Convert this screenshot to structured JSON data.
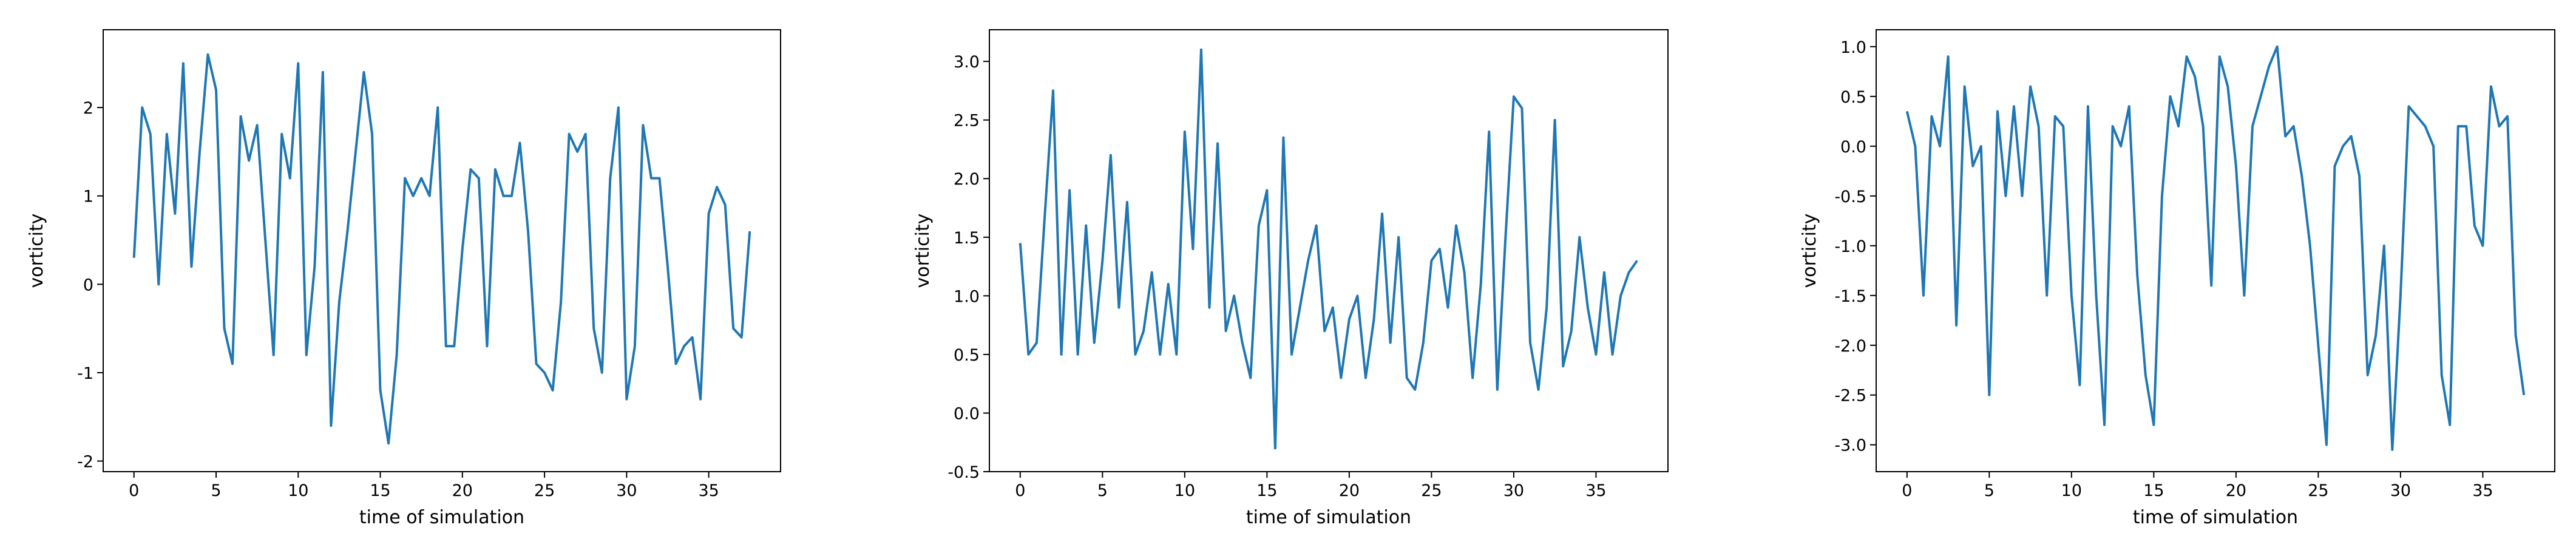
{
  "chart_data": [
    {
      "type": "line",
      "xlabel": "time of simulation",
      "ylabel": "vorticity",
      "x": [
        0,
        0.5,
        1,
        1.5,
        2,
        2.5,
        3,
        3.5,
        4,
        4.5,
        5,
        5.5,
        6,
        6.5,
        7,
        7.5,
        8,
        8.5,
        9,
        9.5,
        10,
        10.5,
        11,
        11.5,
        12,
        12.5,
        13,
        13.5,
        14,
        14.5,
        15,
        15.5,
        16,
        16.5,
        17,
        17.5,
        18,
        18.5,
        19,
        19.5,
        20,
        20.5,
        21,
        21.5,
        22,
        22.5,
        23,
        23.5,
        24,
        24.5,
        25,
        25.5,
        26,
        26.5,
        27,
        27.5,
        28,
        28.5,
        29,
        29.5,
        30,
        30.5,
        31,
        31.5,
        32,
        32.5,
        33,
        33.5,
        34,
        34.5,
        35,
        35.5,
        36,
        36.5,
        37,
        37.5
      ],
      "series": [
        {
          "color": "#1f77b4",
          "values": [
            0.3,
            2.0,
            1.7,
            0.0,
            1.7,
            0.8,
            2.5,
            0.2,
            1.5,
            2.6,
            2.2,
            -0.5,
            -0.9,
            1.9,
            1.4,
            1.8,
            0.5,
            -0.8,
            1.7,
            1.2,
            2.5,
            -0.8,
            0.2,
            2.4,
            -1.6,
            -0.2,
            0.6,
            1.5,
            2.4,
            1.7,
            -1.2,
            -1.8,
            -0.8,
            1.2,
            1.0,
            1.2,
            1.0,
            2.0,
            -0.7,
            -0.7,
            0.4,
            1.3,
            1.2,
            -0.7,
            1.3,
            1.0,
            1.0,
            1.6,
            0.6,
            -0.9,
            -1.0,
            -1.2,
            -0.2,
            1.7,
            1.5,
            1.7,
            -0.5,
            -1.0,
            1.2,
            2.0,
            -1.3,
            -0.7,
            1.8,
            1.2,
            1.2,
            0.2,
            -0.9,
            -0.7,
            -0.6,
            -1.3,
            0.8,
            1.1,
            0.9,
            -0.5,
            -0.6,
            0.6
          ]
        }
      ],
      "xlim": [
        -1.875,
        39.375
      ],
      "ylim": [
        -2.12,
        2.88
      ],
      "xticks": [
        0,
        5,
        10,
        15,
        20,
        25,
        30,
        35
      ],
      "yticks": [
        -2,
        -1,
        0,
        1,
        2
      ]
    },
    {
      "type": "line",
      "xlabel": "time of simulation",
      "ylabel": "vorticity",
      "x": [
        0,
        0.5,
        1,
        1.5,
        2,
        2.5,
        3,
        3.5,
        4,
        4.5,
        5,
        5.5,
        6,
        6.5,
        7,
        7.5,
        8,
        8.5,
        9,
        9.5,
        10,
        10.5,
        11,
        11.5,
        12,
        12.5,
        13,
        13.5,
        14,
        14.5,
        15,
        15.5,
        16,
        16.5,
        17,
        17.5,
        18,
        18.5,
        19,
        19.5,
        20,
        20.5,
        21,
        21.5,
        22,
        22.5,
        23,
        23.5,
        24,
        24.5,
        25,
        25.5,
        26,
        26.5,
        27,
        27.5,
        28,
        28.5,
        29,
        29.5,
        30,
        30.5,
        31,
        31.5,
        32,
        32.5,
        33,
        33.5,
        34,
        34.5,
        35,
        35.5,
        36,
        36.5,
        37,
        37.5
      ],
      "series": [
        {
          "color": "#1f77b4",
          "values": [
            1.45,
            0.5,
            0.6,
            1.7,
            2.75,
            0.5,
            1.9,
            0.5,
            1.6,
            0.6,
            1.3,
            2.2,
            0.9,
            1.8,
            0.5,
            0.7,
            1.2,
            0.5,
            1.1,
            0.5,
            2.4,
            1.4,
            3.1,
            0.9,
            2.3,
            0.7,
            1.0,
            0.6,
            0.3,
            1.6,
            1.9,
            -0.3,
            2.35,
            0.5,
            0.9,
            1.3,
            1.6,
            0.7,
            0.9,
            0.3,
            0.8,
            1.0,
            0.3,
            0.8,
            1.7,
            0.6,
            1.5,
            0.3,
            0.2,
            0.6,
            1.3,
            1.4,
            0.9,
            1.6,
            1.2,
            0.3,
            1.1,
            2.4,
            0.2,
            1.5,
            2.7,
            2.6,
            0.6,
            0.2,
            0.9,
            2.5,
            0.4,
            0.7,
            1.5,
            0.9,
            0.5,
            1.2,
            0.5,
            1.0,
            1.2,
            1.3
          ]
        }
      ],
      "xlim": [
        -1.875,
        39.375
      ],
      "ylim": [
        -0.5,
        3.27
      ],
      "xticks": [
        0,
        5,
        10,
        15,
        20,
        25,
        30,
        35
      ],
      "yticks": [
        -0.5,
        {
          "value": 0,
          "label": "0.0"
        },
        0.5,
        {
          "value": 1,
          "label": "1.0"
        },
        1.5,
        {
          "value": 2,
          "label": "2.0"
        },
        2.5,
        {
          "value": 3,
          "label": "3.0"
        }
      ]
    },
    {
      "type": "line",
      "xlabel": "time of simulation",
      "ylabel": "vorticity",
      "x": [
        0,
        0.5,
        1,
        1.5,
        2,
        2.5,
        3,
        3.5,
        4,
        4.5,
        5,
        5.5,
        6,
        6.5,
        7,
        7.5,
        8,
        8.5,
        9,
        9.5,
        10,
        10.5,
        11,
        11.5,
        12,
        12.5,
        13,
        13.5,
        14,
        14.5,
        15,
        15.5,
        16,
        16.5,
        17,
        17.5,
        18,
        18.5,
        19,
        19.5,
        20,
        20.5,
        21,
        21.5,
        22,
        22.5,
        23,
        23.5,
        24,
        24.5,
        25,
        25.5,
        26,
        26.5,
        27,
        27.5,
        28,
        28.5,
        29,
        29.5,
        30,
        30.5,
        31,
        31.5,
        32,
        32.5,
        33,
        33.5,
        34,
        34.5,
        35,
        35.5,
        36,
        36.5,
        37,
        37.5
      ],
      "series": [
        {
          "color": "#1f77b4",
          "values": [
            0.35,
            0.0,
            -1.5,
            0.3,
            0.0,
            0.9,
            -1.8,
            0.6,
            -0.2,
            0.0,
            -2.5,
            0.35,
            -0.5,
            0.4,
            -0.5,
            0.6,
            0.2,
            -1.5,
            0.3,
            0.2,
            -1.5,
            -2.4,
            0.4,
            -1.5,
            -2.8,
            0.2,
            0.0,
            0.4,
            -1.3,
            -2.3,
            -2.8,
            -0.5,
            0.5,
            0.2,
            0.9,
            0.7,
            0.2,
            -1.4,
            0.9,
            0.6,
            -0.2,
            -1.5,
            0.2,
            0.5,
            0.8,
            1.0,
            0.1,
            0.2,
            -0.3,
            -1.0,
            -2.0,
            -3.0,
            -0.2,
            0.0,
            0.1,
            -0.3,
            -2.3,
            -1.9,
            -1.0,
            -3.05,
            -1.5,
            0.4,
            0.3,
            0.2,
            0.0,
            -2.3,
            -2.8,
            0.2,
            0.2,
            -0.8,
            -1.0,
            0.6,
            0.2,
            0.3,
            -1.9,
            -2.5
          ]
        }
      ],
      "xlim": [
        -1.875,
        39.375
      ],
      "ylim": [
        -3.27,
        1.17
      ],
      "xticks": [
        0,
        5,
        10,
        15,
        20,
        25,
        30,
        35
      ],
      "yticks": [
        {
          "value": -3,
          "label": "-3.0"
        },
        -2.5,
        {
          "value": -2,
          "label": "-2.0"
        },
        -1.5,
        {
          "value": -1,
          "label": "-1.0"
        },
        -0.5,
        {
          "value": 0,
          "label": "0.0"
        },
        0.5,
        {
          "value": 1,
          "label": "1.0"
        }
      ]
    }
  ]
}
